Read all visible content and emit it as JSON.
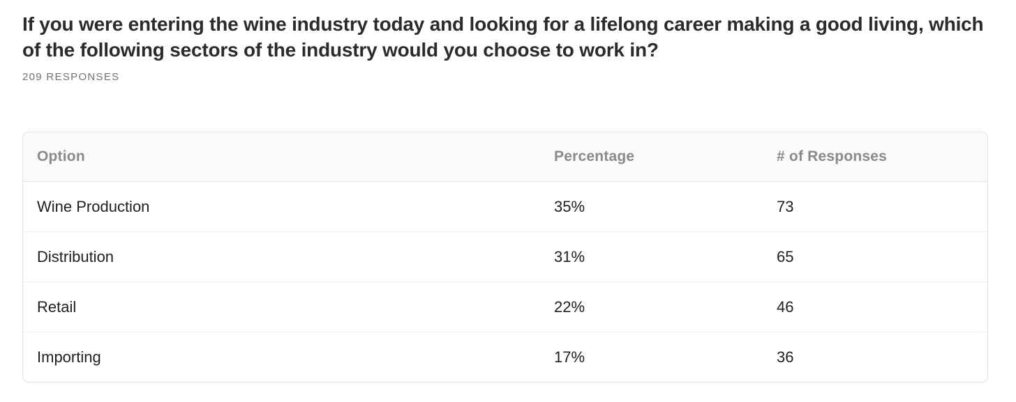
{
  "chart_data": {
    "type": "table",
    "title": "If you were entering the wine industry today and looking for a lifelong career making a good living, which of the following sectors of the industry would you choose to work in?",
    "subtitle": "209 RESPONSES",
    "total_responses": 209,
    "columns": [
      "Option",
      "Percentage",
      "# of Responses"
    ],
    "rows": [
      [
        "Wine Production",
        "35%",
        "73"
      ],
      [
        "Distribution",
        "31%",
        "65"
      ],
      [
        "Retail",
        "22%",
        "46"
      ],
      [
        "Importing",
        "17%",
        "36"
      ]
    ],
    "series": [
      {
        "name": "Percentage",
        "values": [
          35,
          31,
          22,
          17
        ]
      },
      {
        "name": "# of Responses",
        "values": [
          73,
          65,
          46,
          36
        ]
      }
    ],
    "categories": [
      "Wine Production",
      "Distribution",
      "Retail",
      "Importing"
    ],
    "legend_position": "none",
    "grid": false
  },
  "colors": {
    "title_text": "#2b2b2b",
    "muted_text": "#737373",
    "header_text": "#8a8a8a",
    "cell_text": "#1f1f1f",
    "header_background": "#fafafa",
    "table_border": "#e3e3e3",
    "row_divider": "#ececec",
    "page_background": "#ffffff"
  }
}
